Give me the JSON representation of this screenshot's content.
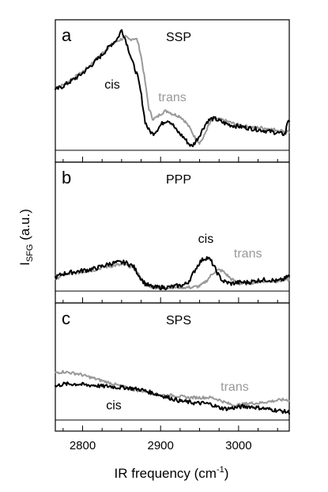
{
  "chart_data": {
    "type": "line",
    "ylabel_main": "I",
    "ylabel_sub": "SFG",
    "ylabel_tail": " (a.u.)",
    "xlabel_main": "IR frequency (cm",
    "xlabel_sup": "-1",
    "xlabel_tail": ")",
    "xlim": [
      2765,
      3065
    ],
    "xticks": [
      2800,
      2900,
      3000
    ],
    "xtick_labels": [
      "2800",
      "2900",
      "3000"
    ],
    "colors": {
      "cis": "#000000",
      "trans": "#999999"
    },
    "panels": [
      {
        "letter": "a",
        "polarization": "SSP",
        "ylim": [
          0,
          10
        ],
        "annotations": [
          {
            "text": "cis",
            "x": 2838,
            "y": 4.9,
            "color": "#000000"
          },
          {
            "text": "trans",
            "x": 2915,
            "y": 3.9,
            "color": "#999999"
          }
        ],
        "series": [
          {
            "name": "cis",
            "x": [
              2765,
              2775,
              2785,
              2795,
              2805,
              2815,
              2825,
              2835,
              2845,
              2850,
              2855,
              2860,
              2865,
              2870,
              2875,
              2880,
              2885,
              2890,
              2895,
              2900,
              2905,
              2910,
              2915,
              2920,
              2925,
              2930,
              2935,
              2940,
              2945,
              2950,
              2955,
              2960,
              2965,
              2970,
              2980,
              2990,
              3000,
              3010,
              3020,
              3030,
              3040,
              3050,
              3055,
              3060,
              3063
            ],
            "y": [
              4.8,
              5.1,
              5.5,
              5.9,
              6.4,
              7.0,
              7.6,
              8.3,
              8.9,
              9.6,
              8.8,
              7.8,
              6.8,
              6.0,
              4.5,
              2.3,
              1.6,
              1.3,
              1.6,
              2.0,
              2.3,
              2.4,
              2.1,
              1.6,
              1.3,
              1.0,
              0.6,
              0.3,
              0.7,
              1.2,
              1.8,
              2.3,
              2.5,
              2.5,
              2.2,
              2.0,
              1.9,
              1.8,
              1.7,
              1.6,
              1.5,
              1.4,
              1.3,
              1.3,
              2.4
            ]
          },
          {
            "name": "trans",
            "x": [
              2765,
              2775,
              2785,
              2795,
              2805,
              2815,
              2825,
              2835,
              2845,
              2855,
              2860,
              2865,
              2870,
              2875,
              2880,
              2885,
              2890,
              2895,
              2900,
              2905,
              2910,
              2915,
              2920,
              2925,
              2930,
              2935,
              2940,
              2945,
              2950,
              2955,
              2960,
              2965,
              2970,
              2980,
              2990,
              3000,
              3010,
              3020,
              3030,
              3040,
              3050,
              3060
            ],
            "y": [
              4.9,
              5.2,
              5.6,
              6.0,
              6.5,
              7.1,
              7.7,
              8.3,
              8.7,
              9.0,
              8.8,
              8.9,
              8.8,
              7.5,
              5.5,
              3.3,
              2.5,
              2.6,
              2.9,
              3.1,
              3.1,
              2.9,
              2.8,
              2.7,
              2.4,
              2.0,
              1.5,
              0.9,
              0.6,
              1.0,
              1.8,
              2.3,
              2.5,
              2.4,
              2.2,
              2.0,
              1.9,
              1.8,
              1.8,
              1.7,
              1.6,
              1.5
            ]
          }
        ]
      },
      {
        "letter": "b",
        "polarization": "PPP",
        "ylim": [
          0,
          10
        ],
        "annotations": [
          {
            "text": "cis",
            "x": 2958,
            "y": 3.9,
            "color": "#000000"
          },
          {
            "text": "trans",
            "x": 3012,
            "y": 2.7,
            "color": "#999999"
          }
        ],
        "series": [
          {
            "name": "cis",
            "x": [
              2765,
              2775,
              2785,
              2795,
              2805,
              2815,
              2825,
              2835,
              2845,
              2855,
              2865,
              2870,
              2875,
              2880,
              2890,
              2900,
              2910,
              2920,
              2930,
              2935,
              2940,
              2945,
              2950,
              2955,
              2960,
              2965,
              2970,
              2975,
              2980,
              2990,
              3000,
              3010,
              3020,
              3030,
              3040,
              3050,
              3060,
              3063
            ],
            "y": [
              1.1,
              1.4,
              1.5,
              1.6,
              1.7,
              1.8,
              2.0,
              2.2,
              2.3,
              2.3,
              2.0,
              1.5,
              1.0,
              0.6,
              0.3,
              0.3,
              0.3,
              0.4,
              0.5,
              0.7,
              1.2,
              1.8,
              2.3,
              2.6,
              2.7,
              2.4,
              1.8,
              1.2,
              0.8,
              0.6,
              0.7,
              0.7,
              0.8,
              0.9,
              0.9,
              0.8,
              1.0,
              1.2
            ]
          },
          {
            "name": "trans",
            "x": [
              2765,
              2775,
              2785,
              2795,
              2805,
              2815,
              2825,
              2835,
              2845,
              2855,
              2865,
              2870,
              2875,
              2880,
              2890,
              2900,
              2910,
              2920,
              2930,
              2940,
              2950,
              2955,
              2960,
              2965,
              2970,
              2975,
              2980,
              2985,
              2990,
              3000,
              3010,
              3020,
              3030,
              3040,
              3050,
              3060
            ],
            "y": [
              1.0,
              1.3,
              1.4,
              1.5,
              1.6,
              1.7,
              1.9,
              2.0,
              2.1,
              2.1,
              1.9,
              1.5,
              1.0,
              0.6,
              0.3,
              0.3,
              0.3,
              0.3,
              0.3,
              0.3,
              0.4,
              0.6,
              0.9,
              1.3,
              1.6,
              1.7,
              1.6,
              1.3,
              1.0,
              0.6,
              0.6,
              0.7,
              0.8,
              0.8,
              0.8,
              0.9
            ]
          }
        ]
      },
      {
        "letter": "c",
        "polarization": "SPS",
        "ylim": [
          0,
          10
        ],
        "annotations": [
          {
            "text": "cis",
            "x": 2840,
            "y": 0.95,
            "color": "#000000"
          },
          {
            "text": "trans",
            "x": 2995,
            "y": 2.6,
            "color": "#999999"
          }
        ],
        "series": [
          {
            "name": "cis",
            "x": [
              2765,
              2775,
              2785,
              2795,
              2805,
              2815,
              2825,
              2835,
              2845,
              2855,
              2865,
              2875,
              2885,
              2895,
              2905,
              2915,
              2925,
              2935,
              2945,
              2955,
              2965,
              2975,
              2985,
              2995,
              3005,
              3015,
              3025,
              3035,
              3045,
              3055,
              3063
            ],
            "y": [
              3.0,
              3.2,
              3.2,
              3.2,
              3.1,
              3.1,
              3.0,
              3.0,
              2.9,
              2.9,
              2.8,
              2.7,
              2.5,
              2.3,
              2.1,
              1.9,
              1.7,
              1.6,
              1.5,
              1.5,
              1.4,
              1.1,
              1.0,
              1.1,
              1.2,
              1.2,
              1.1,
              1.0,
              0.9,
              0.8,
              0.7
            ]
          },
          {
            "name": "trans",
            "x": [
              2765,
              2775,
              2785,
              2795,
              2805,
              2815,
              2825,
              2835,
              2845,
              2855,
              2865,
              2875,
              2885,
              2895,
              2905,
              2915,
              2925,
              2935,
              2945,
              2955,
              2965,
              2975,
              2985,
              2995,
              3005,
              3015,
              3025,
              3035,
              3045,
              3055,
              3063
            ],
            "y": [
              4.2,
              4.3,
              4.2,
              4.1,
              3.9,
              3.7,
              3.5,
              3.3,
              3.1,
              2.9,
              2.7,
              2.6,
              2.5,
              2.3,
              2.2,
              2.2,
              2.1,
              2.0,
              2.0,
              2.0,
              2.0,
              1.8,
              1.5,
              1.3,
              1.4,
              1.5,
              1.5,
              1.6,
              1.7,
              1.8,
              1.8
            ]
          }
        ]
      }
    ]
  }
}
